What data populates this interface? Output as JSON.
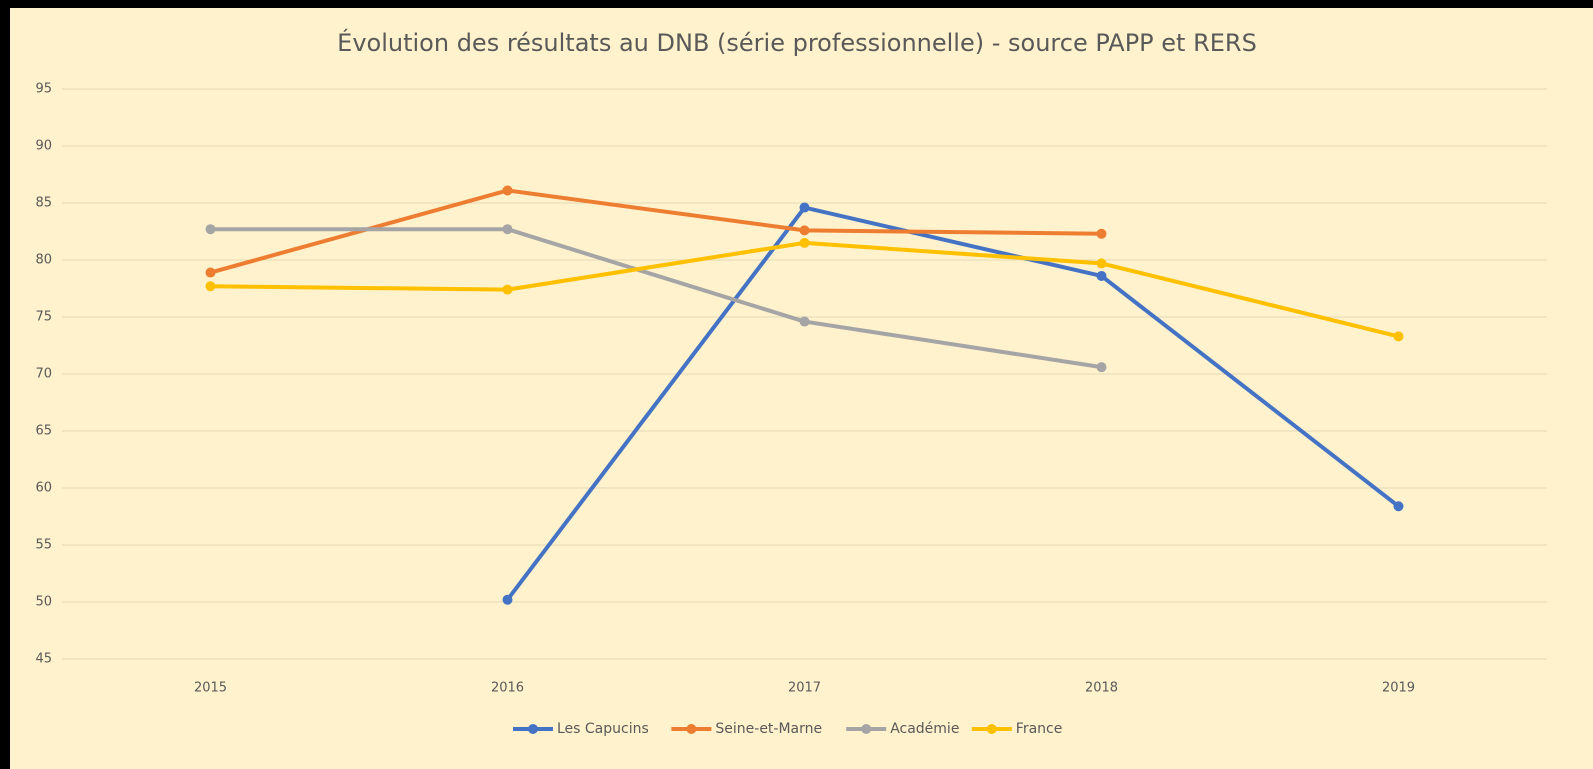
{
  "chart_data": {
    "type": "line",
    "title": "Évolution des résultats au DNB (série professionnelle) - source PAPP et RERS",
    "categories": [
      "2015",
      "2016",
      "2017",
      "2018",
      "2019"
    ],
    "series": [
      {
        "name": "Les Capucins",
        "color": "#4472c4",
        "values": [
          null,
          50.2,
          84.6,
          78.6,
          58.4
        ]
      },
      {
        "name": "Seine-et-Marne",
        "color": "#ed7d31",
        "values": [
          78.9,
          86.1,
          82.6,
          82.3,
          null
        ]
      },
      {
        "name": "Académie",
        "color": "#a5a5a5",
        "values": [
          82.7,
          82.7,
          74.6,
          70.6,
          null
        ]
      },
      {
        "name": "France",
        "color": "#ffc000",
        "values": [
          77.7,
          77.4,
          81.5,
          79.7,
          73.3
        ]
      }
    ],
    "ylim": [
      45,
      95
    ],
    "yticks": [
      45,
      50,
      55,
      60,
      65,
      70,
      75,
      80,
      85,
      90,
      95
    ],
    "grid": true,
    "legend": "bottom"
  }
}
